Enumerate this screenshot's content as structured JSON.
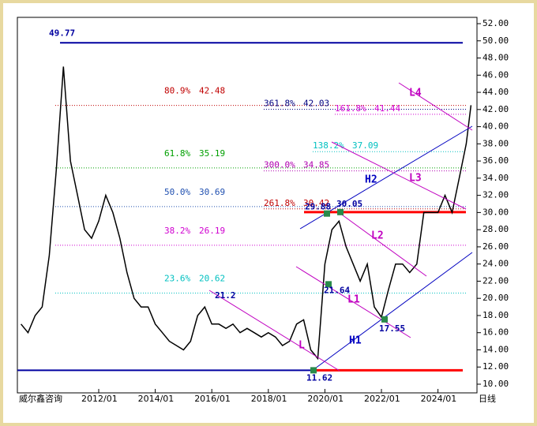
{
  "chart_data": {
    "type": "line",
    "watermark": "威尔鑫咨询",
    "period_label": "日线",
    "x": [
      "2009/04",
      "2009/07",
      "2009/10",
      "2010/01",
      "2010/04",
      "2010/07",
      "2010/10",
      "2011/01",
      "2011/04",
      "2011/07",
      "2011/10",
      "2012/01",
      "2012/04",
      "2012/07",
      "2012/10",
      "2013/01",
      "2013/04",
      "2013/07",
      "2013/10",
      "2014/01",
      "2014/04",
      "2014/07",
      "2014/10",
      "2015/01",
      "2015/04",
      "2015/07",
      "2015/10",
      "2016/01",
      "2016/04",
      "2016/07",
      "2016/10",
      "2017/01",
      "2017/04",
      "2017/07",
      "2017/10",
      "2018/01",
      "2018/04",
      "2018/07",
      "2018/10",
      "2019/01",
      "2019/04",
      "2019/07",
      "2019/10",
      "2020/01",
      "2020/04",
      "2020/07",
      "2020/10",
      "2021/01",
      "2021/04",
      "2021/07",
      "2021/10",
      "2022/01",
      "2022/04",
      "2022/07",
      "2022/10",
      "2023/01",
      "2023/04",
      "2023/07",
      "2023/10",
      "2024/01",
      "2024/04",
      "2024/07",
      "2024/10",
      "2025/01",
      "2025/03"
    ],
    "series": [
      {
        "name": "price",
        "color": "#000000",
        "values": [
          17,
          16,
          18,
          19,
          25,
          35,
          47,
          36,
          32,
          28,
          27,
          29,
          32,
          30,
          27,
          23,
          20,
          19,
          19,
          17,
          16,
          15,
          14.5,
          14,
          15,
          18,
          19,
          17,
          17,
          16.5,
          17,
          16,
          16.5,
          16,
          15.5,
          16,
          15.5,
          14.5,
          15,
          17,
          17.5,
          14,
          13,
          24,
          28,
          29,
          26,
          24,
          22,
          24,
          19,
          17.8,
          21,
          24,
          24,
          23,
          24,
          30,
          30,
          30,
          32,
          30,
          34,
          38,
          42.5
        ]
      }
    ],
    "xticks": [
      "2012/01",
      "2014/01",
      "2016/01",
      "2018/01",
      "2020/01",
      "2022/01",
      "2024/01"
    ],
    "ylim": [
      10,
      52
    ],
    "yticks": [
      {
        "value": 10,
        "label": "10.00"
      },
      {
        "value": 12,
        "label": "12.00"
      },
      {
        "value": 14,
        "label": "14.00"
      },
      {
        "value": 16,
        "label": "16.00"
      },
      {
        "value": 18,
        "label": "18.00"
      },
      {
        "value": 20,
        "label": "20.00"
      },
      {
        "value": 22,
        "label": "22.00"
      },
      {
        "value": 24,
        "label": "24.00"
      },
      {
        "value": 26,
        "label": "26.00"
      },
      {
        "value": 28,
        "label": "28.00"
      },
      {
        "value": 30,
        "label": "30.00"
      },
      {
        "value": 32,
        "label": "32.00"
      },
      {
        "value": 34,
        "label": "34.00"
      },
      {
        "value": 36,
        "label": "36.00"
      },
      {
        "value": 38,
        "label": "38.00"
      },
      {
        "value": 40,
        "label": "40.00"
      },
      {
        "value": 42,
        "label": "42.00"
      },
      {
        "value": 44,
        "label": "44.00"
      },
      {
        "value": 46,
        "label": "46.00"
      },
      {
        "value": 48,
        "label": "48.00"
      },
      {
        "value": 50,
        "label": "50.00"
      },
      {
        "value": 52,
        "label": "52.00"
      }
    ],
    "fib_levels": [
      {
        "label": "80.9%",
        "value": 42.48,
        "color": "#c00000"
      },
      {
        "label": "61.8%",
        "value": 35.19,
        "color": "#00a000"
      },
      {
        "label": "50.0%",
        "value": 30.69,
        "color": "#2050b0"
      },
      {
        "label": "38.2%",
        "value": 26.19,
        "color": "#d000d0"
      },
      {
        "label": "23.6%",
        "value": 20.62,
        "color": "#00c0c0"
      }
    ],
    "extension_levels": [
      {
        "label": "361.8%",
        "value": 42.03,
        "color": "#000080"
      },
      {
        "label": "161.8%",
        "value": 41.44,
        "color": "#d000d0"
      },
      {
        "label": "138.2%",
        "value": 37.09,
        "color": "#00c0c0"
      },
      {
        "label": "300.0%",
        "value": 34.85,
        "color": "#b000b0"
      },
      {
        "label": "261.8%",
        "value": 30.42,
        "color": "#c00000"
      }
    ],
    "price_marks": [
      {
        "value": 49.77
      },
      {
        "value": 11.62
      },
      {
        "value": 29.88
      },
      {
        "value": 30.05
      },
      {
        "value": 21.64
      },
      {
        "value": 17.55
      },
      {
        "value": 21.2
      }
    ],
    "trend_lines": [
      "H1",
      "H2",
      "L",
      "L1",
      "L2",
      "L3",
      "L4"
    ]
  }
}
